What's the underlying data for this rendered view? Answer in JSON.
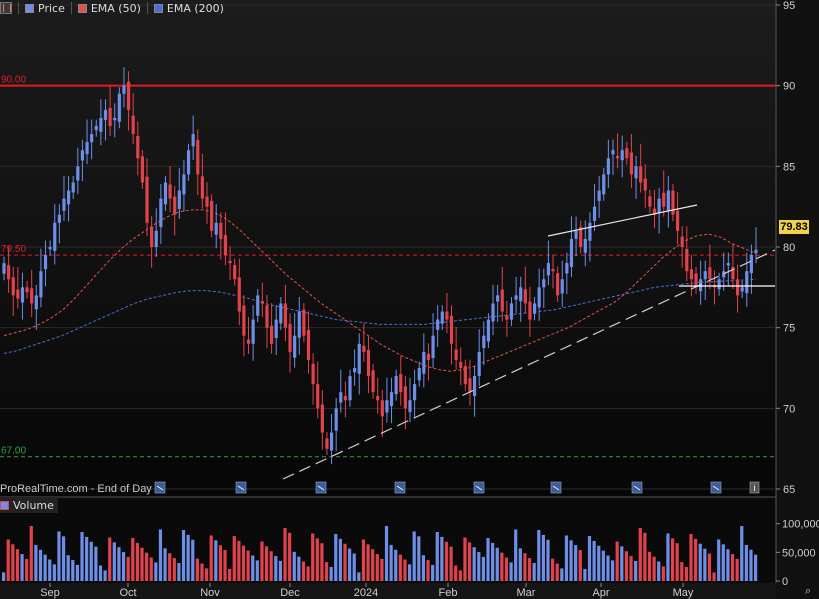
{
  "legend": {
    "price_label": "Price",
    "ema50_label": "EMA (50)",
    "ema200_label": "EMA (200)"
  },
  "source_text": "ProRealTime.com - End of Day",
  "volume_label": "Volume",
  "last_price": "79.83",
  "colors": {
    "background": "#0c0c0c",
    "up": "#6d8fe8",
    "down": "#e0434b",
    "ema50": "#e0534b",
    "ema200": "#4a6fd6",
    "resistance": "#e01b24",
    "support": "#2ea043",
    "price_tag": "#f2d24a"
  },
  "chart_data": {
    "type": "candlestick",
    "x_tick_labels": [
      "Sep",
      "Oct",
      "Nov",
      "Dec",
      "2024",
      "Feb",
      "Mar",
      "Apr",
      "May"
    ],
    "y_tick_labels": [
      "95",
      "90",
      "85",
      "80",
      "75",
      "70",
      "65"
    ],
    "ylim": [
      65,
      95
    ],
    "volume_tick_labels": [
      "100,000",
      "50,000",
      "0"
    ],
    "volume_ylim": [
      0,
      120000
    ],
    "horizontal_levels": [
      {
        "label": "90.00",
        "value": 90.0,
        "style": "solid",
        "color": "#e01b24"
      },
      {
        "label": "79.50",
        "value": 79.5,
        "style": "dashed",
        "color": "#e01b24"
      },
      {
        "label": "67.00",
        "value": 67.0,
        "style": "dashed",
        "color": "#2ea043"
      }
    ],
    "closes": [
      79.0,
      78.0,
      77.0,
      76.8,
      77.5,
      77.2,
      76.5,
      77.0,
      78.5,
      79.5,
      80.0,
      81.5,
      82.0,
      83.0,
      83.5,
      84.0,
      85.0,
      86.0,
      86.5,
      87.0,
      87.5,
      88.0,
      88.5,
      87.5,
      88.0,
      89.5,
      90.0,
      88.5,
      87.0,
      85.5,
      84.0,
      81.5,
      80.0,
      81.0,
      83.0,
      84.0,
      83.0,
      82.0,
      83.5,
      84.5,
      86.0,
      87.0,
      84.5,
      83.0,
      82.5,
      81.0,
      81.5,
      80.5,
      79.5,
      79.0,
      78.0,
      76.0,
      74.5,
      74.0,
      75.5,
      77.0,
      76.5,
      75.0,
      74.0,
      75.5,
      76.5,
      75.0,
      73.5,
      74.5,
      76.0,
      74.5,
      73.0,
      71.5,
      70.0,
      68.5,
      67.5,
      68.5,
      70.0,
      71.0,
      70.5,
      72.0,
      72.5,
      74.0,
      73.5,
      72.0,
      71.0,
      70.5,
      69.5,
      70.5,
      71.0,
      72.0,
      71.0,
      70.0,
      70.5,
      71.5,
      72.5,
      73.5,
      73.0,
      74.5,
      75.5,
      76.0,
      75.5,
      74.0,
      73.0,
      72.5,
      71.5,
      71.0,
      72.0,
      73.5,
      74.5,
      75.5,
      76.5,
      77.0,
      76.0,
      75.5,
      76.5,
      77.0,
      77.5,
      76.5,
      75.5,
      76.5,
      77.5,
      78.0,
      79.0,
      78.5,
      77.0,
      78.0,
      79.0,
      80.5,
      81.0,
      80.0,
      80.5,
      81.5,
      82.5,
      83.5,
      84.5,
      85.5,
      86.0,
      85.5,
      86.0,
      85.5,
      84.5,
      85.0,
      84.0,
      83.5,
      82.5,
      82.0,
      83.0,
      82.5,
      83.5,
      82.0,
      81.0,
      80.0,
      78.5,
      78.0,
      77.5,
      78.0,
      78.5,
      78.0,
      77.5,
      78.0,
      78.5,
      79.0,
      78.0,
      77.0,
      77.5,
      78.5,
      79.5,
      79.83
    ],
    "ema50": [
      74.5,
      74.7,
      74.9,
      75.2,
      75.6,
      76.1,
      76.8,
      77.6,
      78.4,
      79.2,
      79.9,
      80.5,
      81.0,
      81.5,
      81.9,
      82.2,
      82.3,
      82.3,
      82.1,
      81.7,
      81.1,
      80.4,
      79.7,
      79.0,
      78.3,
      77.7,
      77.1,
      76.5,
      76.0,
      75.5,
      75.0,
      74.5,
      74.0,
      73.6,
      73.2,
      72.9,
      72.6,
      72.4,
      72.3,
      72.4,
      72.6,
      72.9,
      73.2,
      73.5,
      73.8,
      74.1,
      74.4,
      74.7,
      75.0,
      75.4,
      75.8,
      76.2,
      76.6,
      77.2,
      77.9,
      78.6,
      79.3,
      79.9,
      80.4,
      80.7,
      80.8,
      80.6,
      80.2,
      79.9,
      79.6
    ],
    "ema200": [
      73.4,
      73.6,
      73.9,
      74.2,
      74.5,
      74.9,
      75.3,
      75.7,
      76.1,
      76.5,
      76.8,
      77.0,
      77.2,
      77.3,
      77.3,
      77.2,
      77.0,
      76.8,
      76.5,
      76.3,
      76.1,
      75.9,
      75.7,
      75.5,
      75.4,
      75.3,
      75.2,
      75.2,
      75.2,
      75.2,
      75.3,
      75.4,
      75.5,
      75.6,
      75.7,
      75.8,
      75.9,
      76.0,
      76.1,
      76.3,
      76.5,
      76.7,
      76.9,
      77.1,
      77.3,
      77.5,
      77.6,
      77.7,
      77.8,
      77.85,
      77.9,
      77.95,
      78.0
    ]
  }
}
